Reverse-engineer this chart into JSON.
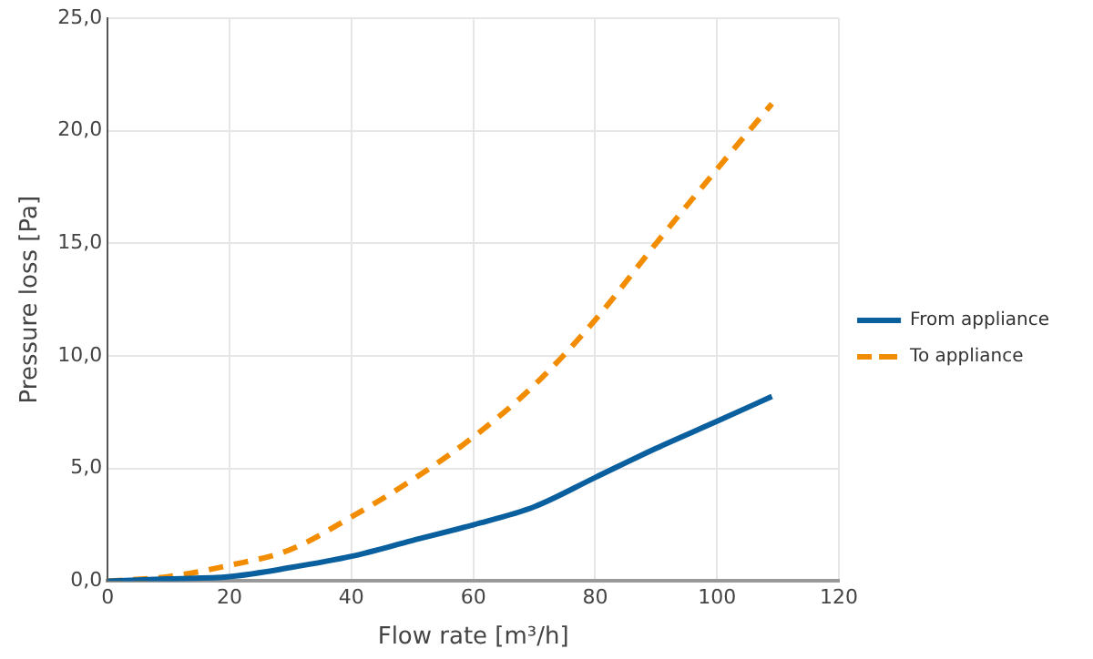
{
  "chart_data": {
    "type": "line",
    "xlabel": "Flow rate [m³/h]",
    "ylabel": "Pressure loss [Pa]",
    "xlim": [
      0,
      120
    ],
    "xticks": [
      0,
      20,
      40,
      60,
      80,
      100,
      120
    ],
    "ylim": [
      0,
      25
    ],
    "yticks": [
      {
        "value": 0,
        "label": "0,0"
      },
      {
        "value": 5,
        "label": "5,0"
      },
      {
        "value": 10,
        "label": "10,0"
      },
      {
        "value": 15,
        "label": "15,0"
      },
      {
        "value": 20,
        "label": "20,0"
      },
      {
        "value": 25,
        "label": "25,0"
      }
    ],
    "grid": true,
    "legend": "right",
    "marker": "none",
    "x": [
      0,
      10,
      20,
      30,
      40,
      50,
      60,
      70,
      80,
      90,
      100,
      109
    ],
    "series": [
      {
        "name": "From appliance",
        "color": "#0a5f9e",
        "line_style": "solid",
        "values": [
          0,
          0.1,
          0.2,
          0.6,
          1.1,
          1.8,
          2.5,
          3.3,
          4.6,
          5.9,
          7.1,
          8.2
        ]
      },
      {
        "name": "To appliance",
        "color": "#f28c00",
        "line_style": "dashed",
        "values": [
          0,
          0.2,
          0.7,
          1.4,
          2.85,
          4.5,
          6.4,
          8.7,
          11.6,
          15.0,
          18.3,
          21.2
        ]
      }
    ]
  }
}
